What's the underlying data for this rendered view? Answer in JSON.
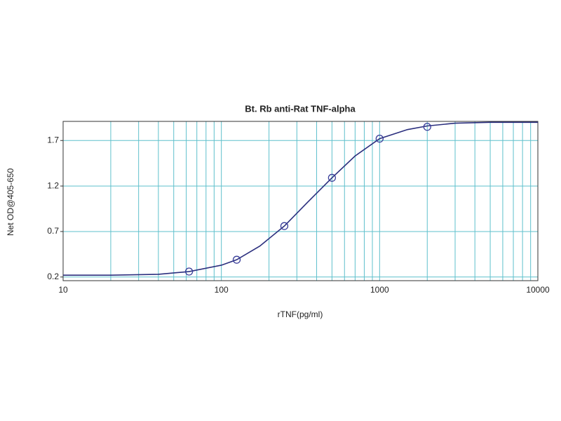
{
  "chart_data": {
    "type": "scatter",
    "title": "Bt. Rb anti-Rat TNF-alpha",
    "x_label": "rTNF(pg/ml)",
    "y_label": "Net OD@405-650",
    "x_scale": "log",
    "grid": true,
    "xlim": [
      10,
      10000
    ],
    "ylim": [
      0.16,
      1.91
    ],
    "xticks": [
      10,
      100,
      1000,
      10000
    ],
    "xminor_ticks": [
      20,
      30,
      40,
      50,
      60,
      70,
      80,
      90,
      200,
      300,
      400,
      500,
      600,
      700,
      800,
      900,
      2000,
      3000,
      4000,
      5000,
      6000,
      7000,
      8000,
      9000
    ],
    "yticks": [
      0.2,
      0.7,
      1.2,
      1.7
    ],
    "grid_color": "#5fc0cc",
    "series": [
      {
        "style": "line",
        "color": "#2b2f7e",
        "x": [
          10,
          20,
          40,
          62.5,
          100,
          125,
          175,
          250,
          350,
          500,
          700,
          1000,
          1500,
          2000,
          3000,
          5000,
          10000
        ],
        "values": [
          0.22,
          0.22,
          0.23,
          0.26,
          0.33,
          0.39,
          0.54,
          0.76,
          1.02,
          1.29,
          1.53,
          1.72,
          1.82,
          1.86,
          1.89,
          1.9,
          1.9
        ]
      },
      {
        "style": "marker",
        "color": "#3a3f9a",
        "x": [
          62.5,
          125,
          250,
          500,
          1000,
          2000
        ],
        "values": [
          0.26,
          0.39,
          0.76,
          1.29,
          1.72,
          1.85
        ]
      }
    ]
  }
}
